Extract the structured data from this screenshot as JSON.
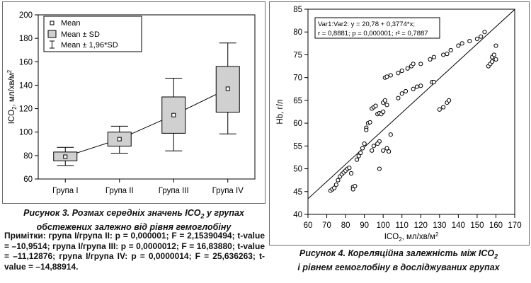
{
  "chart_data": [
    {
      "type": "box",
      "title": "",
      "xlabel": "",
      "ylabel": "ICO₂, мл/хв/м²",
      "ylabel_base": "ICO",
      "ylabel_sub": "2",
      "ylabel_rest": ", мл/хв/м",
      "ylabel_sup": "2",
      "ylim": [
        60,
        200
      ],
      "yticks": [
        60,
        80,
        100,
        120,
        140,
        160,
        180,
        200
      ],
      "categories": [
        "Група I",
        "Група II",
        "Група III",
        "Група IV"
      ],
      "series": [
        {
          "name": "Mean",
          "values": [
            79,
            94,
            114.5,
            137
          ]
        },
        {
          "name": "Mean ± SD",
          "low": [
            75.5,
            88,
            99,
            117
          ],
          "high": [
            83,
            100,
            130,
            156
          ]
        },
        {
          "name": "Mean ± 1,96*SD",
          "low": [
            71.5,
            82,
            84,
            98.5
          ],
          "high": [
            87,
            105,
            146,
            176
          ]
        }
      ],
      "legend": [
        "Mean",
        "Mean ± SD",
        "Mean ± 1,96*SD"
      ],
      "legend_position": "top-left",
      "grid": false
    },
    {
      "type": "scatter",
      "title": "",
      "xlabel": "ICO₂, мл/хв/м²",
      "xlabel_base": "ICO",
      "xlabel_sub": "2",
      "xlabel_rest": ", мл/хв/м",
      "xlabel_sup": "2",
      "ylabel": "Hb, г/л",
      "xlim": [
        60,
        170
      ],
      "ylim": [
        40,
        85
      ],
      "xticks": [
        60,
        70,
        80,
        90,
        100,
        110,
        120,
        130,
        140,
        150,
        160,
        170
      ],
      "yticks": [
        40,
        45,
        50,
        55,
        60,
        65,
        70,
        75,
        80,
        85
      ],
      "annotation": [
        "Var1:Var2: y = 20,78 + 0,3774*x;",
        "r = 0,8881; p = 0,000001; r² = 0,7887"
      ],
      "regression": {
        "intercept": 20.78,
        "slope": 0.3774
      },
      "grid": false,
      "points": [
        [
          72,
          45.2
        ],
        [
          73,
          45.5
        ],
        [
          74,
          45.8
        ],
        [
          75,
          46.5
        ],
        [
          76,
          47.5
        ],
        [
          77,
          48.3
        ],
        [
          78,
          48.8
        ],
        [
          79,
          49.2
        ],
        [
          80,
          49.6
        ],
        [
          81,
          50.0
        ],
        [
          82,
          50.2
        ],
        [
          83,
          49.0
        ],
        [
          84,
          46.0
        ],
        [
          84,
          45.5
        ],
        [
          85,
          46.2
        ],
        [
          86,
          52.0
        ],
        [
          87,
          52.8
        ],
        [
          88,
          53.5
        ],
        [
          89,
          54.5
        ],
        [
          90,
          55.5
        ],
        [
          91,
          59.0
        ],
        [
          91,
          58.5
        ],
        [
          92,
          60.0
        ],
        [
          93,
          60.2
        ],
        [
          94,
          63.2
        ],
        [
          95,
          63.5
        ],
        [
          96,
          63.8
        ],
        [
          97,
          62.0
        ],
        [
          98,
          62.2
        ],
        [
          98,
          56.0
        ],
        [
          99,
          62.0
        ],
        [
          100,
          62.5
        ],
        [
          100,
          64.5
        ],
        [
          101,
          65.0
        ],
        [
          102,
          64.0
        ],
        [
          94,
          54.0
        ],
        [
          95,
          55.0
        ],
        [
          97,
          55.5
        ],
        [
          98,
          50.0
        ],
        [
          100,
          54.0
        ],
        [
          102,
          54.5
        ],
        [
          103,
          53.8
        ],
        [
          104,
          57.5
        ],
        [
          101,
          70.0
        ],
        [
          102,
          70.2
        ],
        [
          104,
          70.5
        ],
        [
          108,
          71.0
        ],
        [
          110,
          71.5
        ],
        [
          113,
          72.0
        ],
        [
          115,
          72.5
        ],
        [
          116,
          73.0
        ],
        [
          108,
          65.5
        ],
        [
          110,
          66.5
        ],
        [
          112,
          67.0
        ],
        [
          116,
          67.5
        ],
        [
          118,
          68.0
        ],
        [
          120,
          68.2
        ],
        [
          126,
          69.0
        ],
        [
          127,
          69.0
        ],
        [
          120,
          73.0
        ],
        [
          125,
          74.0
        ],
        [
          127,
          74.5
        ],
        [
          132,
          75.0
        ],
        [
          134,
          75.2
        ],
        [
          136,
          76.0
        ],
        [
          130,
          63.0
        ],
        [
          132,
          63.5
        ],
        [
          134,
          64.5
        ],
        [
          135,
          65.0
        ],
        [
          140,
          77.0
        ],
        [
          142,
          77.5
        ],
        [
          146,
          78.0
        ],
        [
          150,
          78.5
        ],
        [
          152,
          79.0
        ],
        [
          154,
          80.0
        ],
        [
          156,
          72.5
        ],
        [
          157,
          73.0
        ],
        [
          158,
          73.5
        ],
        [
          158,
          74.5
        ],
        [
          159,
          75.0
        ],
        [
          160,
          77.0
        ],
        [
          160,
          74.0
        ]
      ]
    }
  ],
  "captions": {
    "fig3_line1_pre": "Рисунок 3. Розмах середніх значень ICO",
    "fig3_line1_sub": "2",
    "fig3_line1_post": " у групах",
    "fig3_line2": "обстежених залежно від рівня гемоглобіну",
    "fig3_notes": "Примітки: група I/група II: p = 0,000001; F = 2,15390494; t-value = –10,9514; група I/група III: p = 0,0000012; F = 16,83880; t-value = –11,12876; група I/група IV: p = 0,0000014; F = 25,636263; t-value = –14,88914.",
    "fig4_line1_pre": "Рисунок 4. Кореляційна залежність між ICO",
    "fig4_line1_sub": "2",
    "fig4_line2": "і рівнем гемоглобіну в досліджуваних групах"
  }
}
